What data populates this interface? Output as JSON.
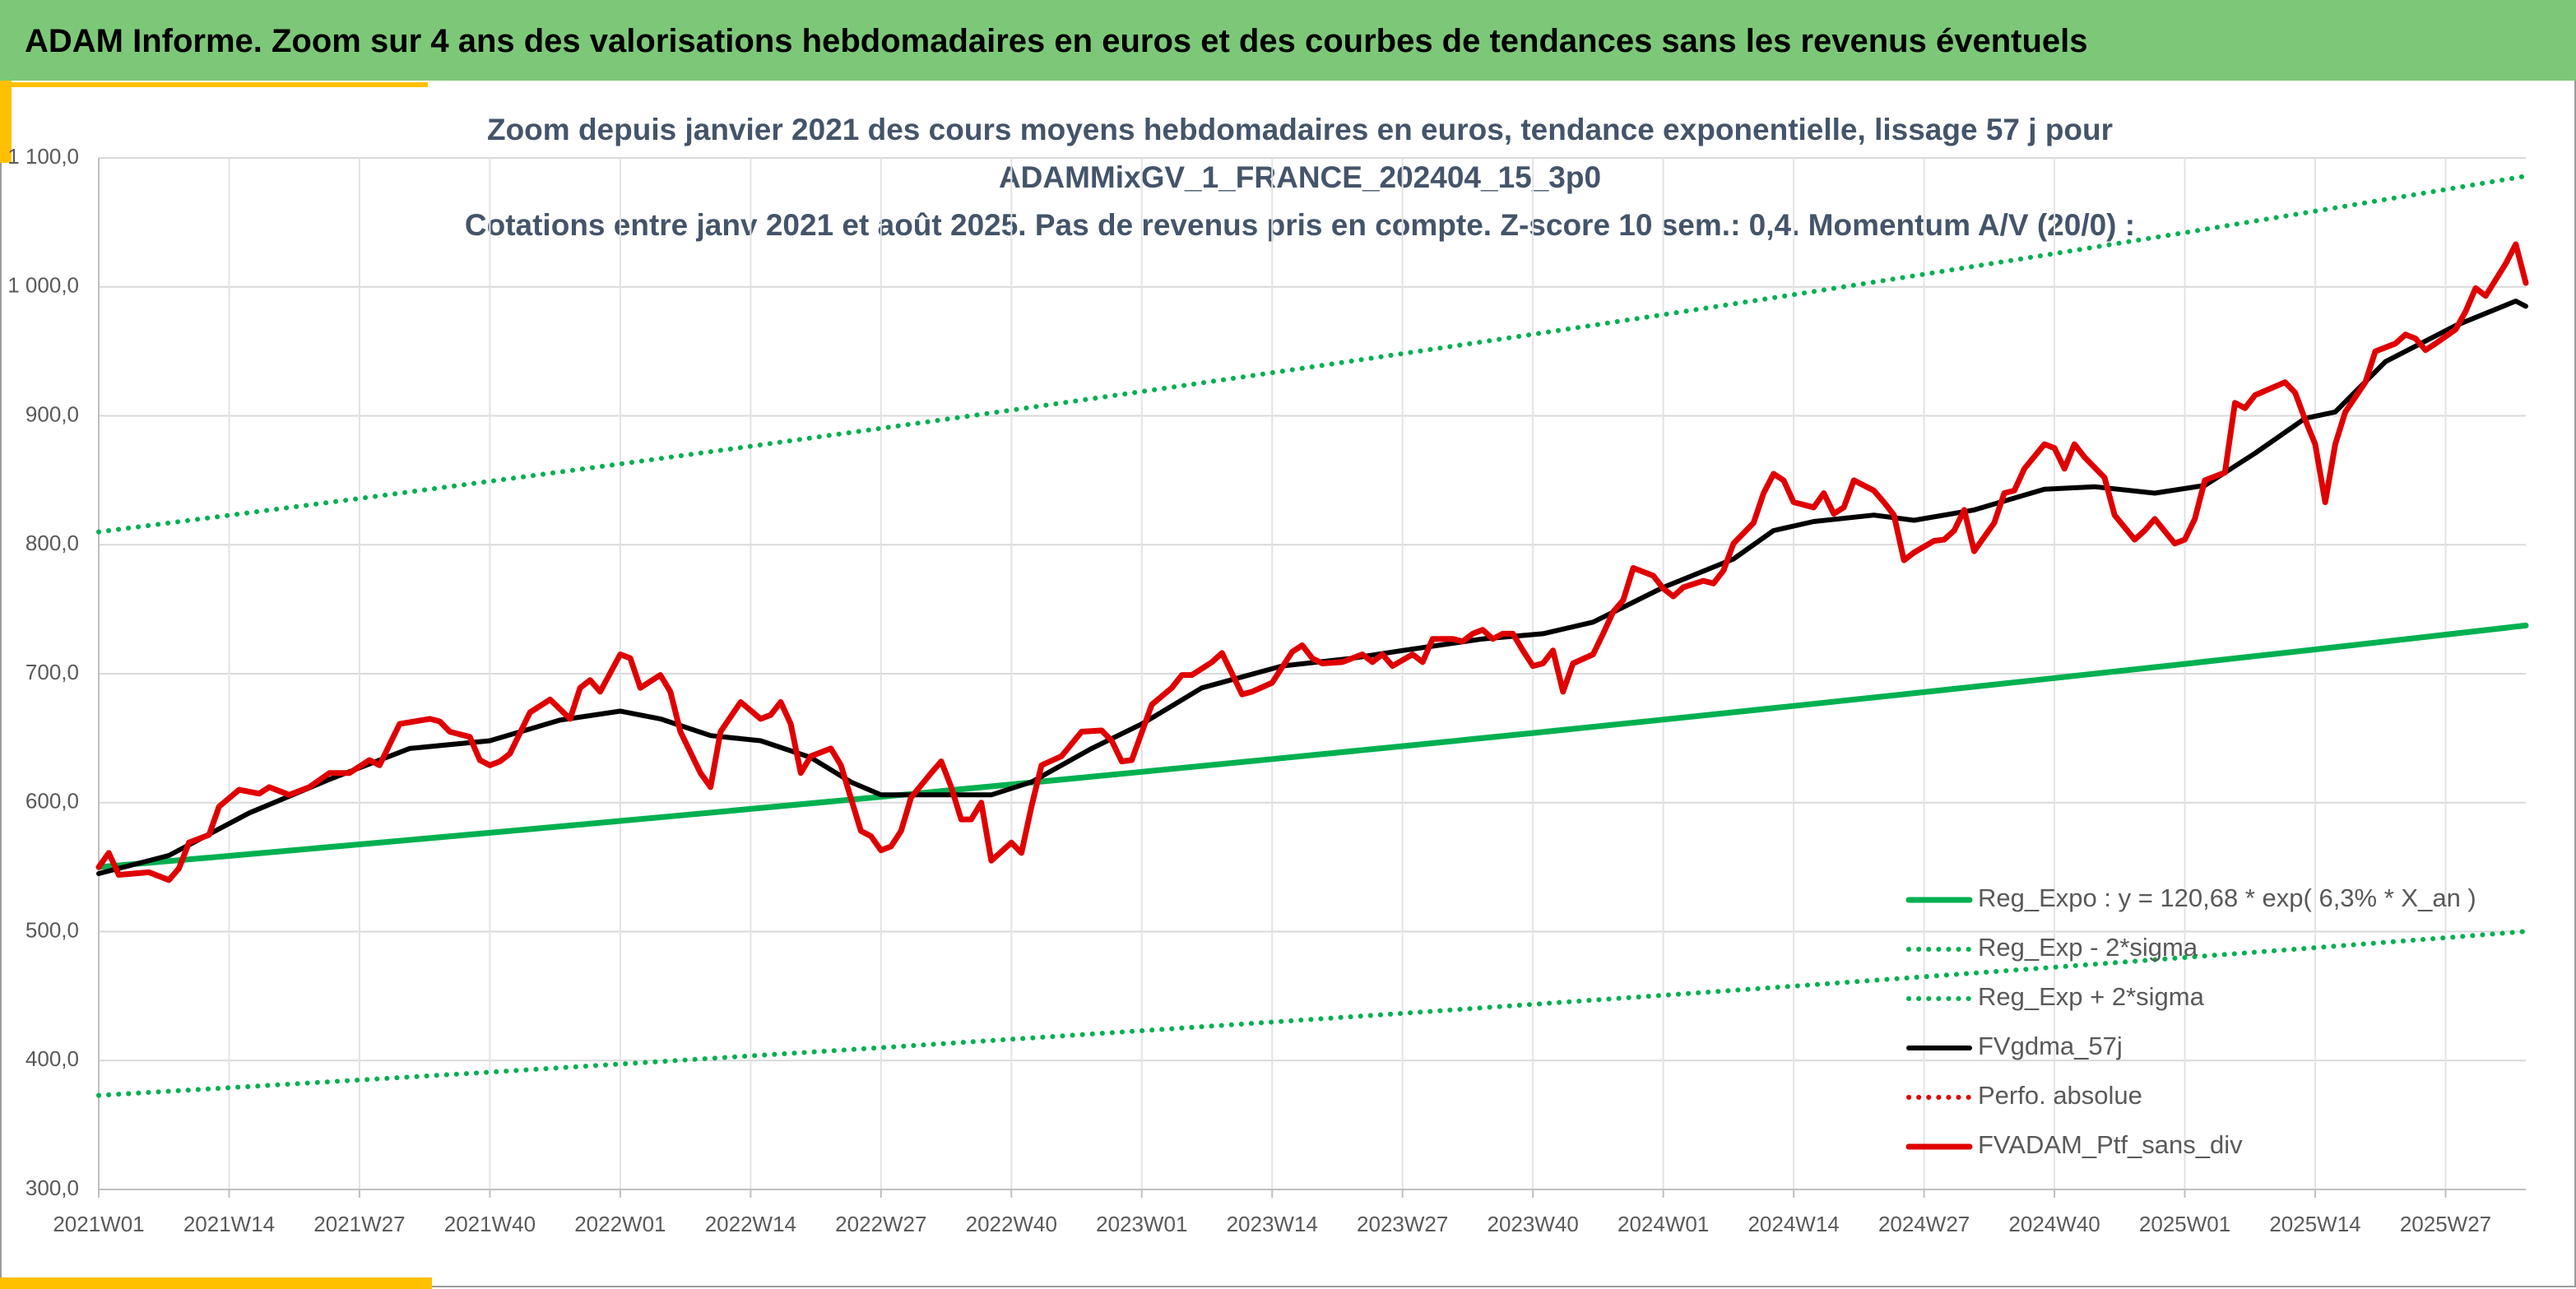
{
  "header": {
    "title": "ADAM Informe. Zoom sur 4 ans des valorisations hebdomadaires en euros et des courbes de tendances sans les revenus éventuels"
  },
  "chart_data": {
    "type": "line",
    "title_lines": [
      "Zoom depuis janvier 2021 des cours moyens hebdomadaires en euros, tendance exponentielle, lissage 57 j pour",
      "ADAMMixGV_1_FRANCE_202404_15_3p0",
      "Cotations entre janv 2021 et août 2025. Pas de revenus pris en compte. Z-score 10 sem.: 0,4. Momentum A/V (20/0) :"
    ],
    "xlim": [
      0,
      242
    ],
    "xticks": [
      {
        "value": 0,
        "label": "2021W01"
      },
      {
        "value": 13,
        "label": "2021W14"
      },
      {
        "value": 26,
        "label": "2021W27"
      },
      {
        "value": 39,
        "label": "2021W40"
      },
      {
        "value": 52,
        "label": "2022W01"
      },
      {
        "value": 65,
        "label": "2022W14"
      },
      {
        "value": 78,
        "label": "2022W27"
      },
      {
        "value": 91,
        "label": "2022W40"
      },
      {
        "value": 104,
        "label": "2023W01"
      },
      {
        "value": 117,
        "label": "2023W14"
      },
      {
        "value": 130,
        "label": "2023W27"
      },
      {
        "value": 143,
        "label": "2023W40"
      },
      {
        "value": 156,
        "label": "2024W01"
      },
      {
        "value": 169,
        "label": "2024W14"
      },
      {
        "value": 182,
        "label": "2024W27"
      },
      {
        "value": 195,
        "label": "2024W40"
      },
      {
        "value": 208,
        "label": "2025W01"
      },
      {
        "value": 221,
        "label": "2025W14"
      },
      {
        "value": 234,
        "label": "2025W27"
      }
    ],
    "ylim": [
      300,
      1100
    ],
    "yticks": [
      {
        "value": 300,
        "label": "300,0"
      },
      {
        "value": 400,
        "label": "400,0"
      },
      {
        "value": 500,
        "label": "500,0"
      },
      {
        "value": 600,
        "label": "600,0"
      },
      {
        "value": 700,
        "label": "700,0"
      },
      {
        "value": 800,
        "label": "800,0"
      },
      {
        "value": 900,
        "label": "900,0"
      },
      {
        "value": 1000,
        "label": "1 000,0"
      },
      {
        "value": 1100,
        "label": "1 100,0"
      }
    ],
    "grid": true,
    "legend": "bottom-right",
    "series": [
      {
        "name": "Reg_Expo : y = 120,68 * exp( 6,3% *  X_an )",
        "color": "#00b050",
        "style": "solid",
        "x": [
          0,
          13,
          26,
          39,
          52,
          65,
          78,
          91,
          104,
          117,
          130,
          143,
          156,
          169,
          182,
          195,
          208,
          221,
          234,
          242
        ],
        "values": [
          550,
          558.7,
          567.6,
          576.6,
          585.8,
          595.1,
          604.5,
          614.1,
          623.9,
          633.8,
          643.8,
          654.0,
          664.4,
          675.0,
          685.7,
          696.6,
          707.6,
          718.8,
          730.3,
          737.4
        ]
      },
      {
        "name": "Reg_Exp - 2*sigma",
        "color": "#00b050",
        "style": "dotted",
        "x": [
          0,
          13,
          26,
          39,
          52,
          65,
          78,
          91,
          104,
          117,
          130,
          143,
          156,
          169,
          182,
          195,
          208,
          221,
          234,
          242
        ],
        "values": [
          373,
          378.9,
          384.9,
          391.0,
          397.3,
          403.6,
          410.0,
          416.5,
          423.1,
          429.8,
          436.6,
          443.6,
          450.6,
          457.7,
          465.0,
          472.4,
          479.9,
          487.5,
          495.2,
          500.1
        ]
      },
      {
        "name": "Reg_Exp + 2*sigma",
        "color": "#00b050",
        "style": "dotted",
        "x": [
          0,
          13,
          26,
          39,
          52,
          65,
          78,
          91,
          104,
          117,
          130,
          143,
          156,
          169,
          182,
          195,
          208,
          221,
          234,
          242
        ],
        "values": [
          810,
          822.9,
          835.9,
          849.2,
          862.7,
          876.4,
          890.3,
          904.4,
          918.8,
          933.4,
          948.2,
          963.2,
          978.5,
          994.0,
          1009.8,
          1025.8,
          1042.1,
          1058.7,
          1075.5,
          1085.9
        ]
      },
      {
        "name": "FVgdma_57j",
        "color": "#000000",
        "style": "solid",
        "x": [
          0,
          7,
          15,
          23,
          31,
          39,
          46,
          52,
          56,
          61,
          66,
          71,
          75,
          78,
          84,
          89,
          93,
          99,
          104,
          110,
          118,
          125,
          130,
          138,
          144,
          149,
          156,
          163,
          167,
          171,
          177,
          181,
          187,
          194,
          199,
          205,
          210,
          215,
          220,
          223,
          228,
          235,
          241,
          242
        ],
        "values": [
          545,
          559,
          592,
          618,
          642,
          648,
          664,
          671,
          665,
          652,
          648,
          635,
          616,
          606,
          606,
          606,
          616,
          642,
          661,
          689,
          706,
          712,
          718,
          727,
          731,
          740,
          767,
          789,
          811,
          818,
          823,
          819,
          827,
          843,
          845,
          840,
          846,
          871,
          898,
          903,
          942,
          970,
          989,
          985
        ]
      },
      {
        "name": "Perfo. absolue",
        "color": "#e00000",
        "style": "dotted",
        "x": [],
        "values": []
      },
      {
        "name": "FVADAM_Ptf_sans_div",
        "color": "#e00000",
        "style": "solid",
        "x": [
          0,
          1,
          2,
          5,
          7,
          8,
          9,
          11,
          12,
          14,
          16,
          17,
          19,
          21,
          23,
          25,
          27,
          28,
          30,
          33,
          34,
          35,
          37,
          38,
          39,
          40,
          41,
          43,
          45,
          47,
          48,
          49,
          50,
          52,
          53,
          54,
          56,
          57,
          58,
          60,
          61,
          62,
          64,
          66,
          67,
          68,
          69,
          70,
          71,
          73,
          74,
          76,
          77,
          78,
          79,
          80,
          81,
          83,
          84,
          85,
          86,
          87,
          88,
          89,
          91,
          92,
          93,
          94,
          96,
          98,
          100,
          101,
          102,
          103,
          105,
          107,
          108,
          109,
          111,
          112,
          114,
          115,
          117,
          119,
          120,
          121,
          122,
          124,
          126,
          127,
          128,
          129,
          131,
          132,
          133,
          135,
          136,
          137,
          138,
          139,
          140,
          141,
          142,
          143,
          144,
          145,
          146,
          147,
          149,
          150,
          151,
          152,
          153,
          155,
          156,
          157,
          158,
          160,
          161,
          162,
          163,
          165,
          166,
          167,
          168,
          169,
          171,
          172,
          173,
          174,
          175,
          177,
          178,
          179,
          180,
          181,
          183,
          184,
          185,
          186,
          187,
          189,
          190,
          191,
          192,
          194,
          195,
          196,
          197,
          198,
          200,
          201,
          203,
          204,
          205,
          207,
          208,
          209,
          210,
          212,
          213,
          214,
          215,
          218,
          219,
          220,
          221,
          222,
          223,
          224,
          226,
          227,
          229,
          230,
          231,
          232,
          233,
          235,
          236,
          237,
          238,
          240,
          241,
          242
        ],
        "values": [
          550,
          561,
          544,
          546,
          540,
          549,
          569,
          575,
          597,
          610,
          607,
          612,
          606,
          612,
          623,
          623,
          633,
          629,
          661,
          665,
          663,
          655,
          651,
          633,
          629,
          632,
          638,
          670,
          680,
          665,
          689,
          695,
          686,
          715,
          712,
          689,
          699,
          686,
          655,
          623,
          612,
          655,
          678,
          665,
          668,
          678,
          661,
          623,
          636,
          642,
          629,
          578,
          574,
          563,
          566,
          578,
          604,
          623,
          632,
          612,
          587,
          587,
          600,
          555,
          569,
          561,
          597,
          629,
          636,
          655,
          656,
          648,
          632,
          633,
          676,
          689,
          699,
          699,
          709,
          716,
          684,
          686,
          693,
          717,
          722,
          712,
          708,
          709,
          715,
          709,
          715,
          706,
          715,
          709,
          727,
          727,
          725,
          731,
          734,
          727,
          731,
          731,
          718,
          706,
          708,
          718,
          686,
          708,
          715,
          731,
          748,
          757,
          782,
          776,
          766,
          760,
          767,
          772,
          770,
          780,
          801,
          817,
          840,
          855,
          850,
          833,
          829,
          840,
          824,
          829,
          850,
          842,
          833,
          823,
          788,
          794,
          803,
          804,
          811,
          827,
          795,
          817,
          840,
          842,
          859,
          878,
          875,
          859,
          878,
          868,
          852,
          823,
          804,
          811,
          820,
          801,
          804,
          820,
          850,
          856,
          910,
          906,
          916,
          926,
          918,
          897,
          878,
          833,
          878,
          903,
          926,
          950,
          956,
          963,
          960,
          951,
          956,
          967,
          981,
          999,
          993,
          1018,
          1033,
          1003
        ]
      }
    ]
  }
}
